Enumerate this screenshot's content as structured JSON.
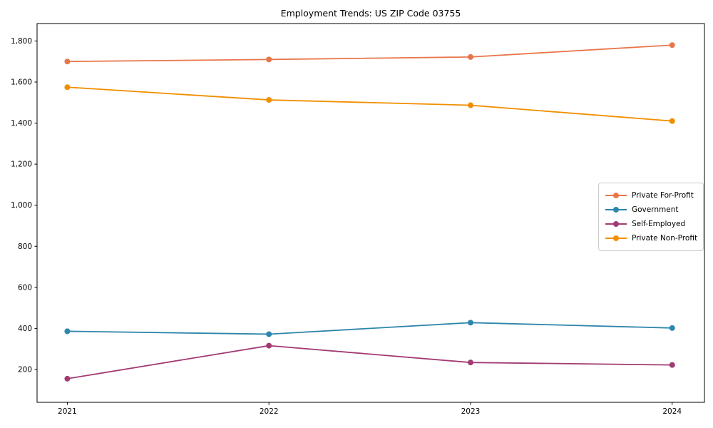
{
  "chart_data": {
    "type": "line",
    "title": "Employment Trends: US ZIP Code 03755",
    "x": [
      2021,
      2022,
      2023,
      2024
    ],
    "x_tick_labels": [
      "2021",
      "2022",
      "2023",
      "2024"
    ],
    "series": [
      {
        "name": "Private For-Profit",
        "color": "#E8764B",
        "values": [
          1700,
          1710,
          1722,
          1780
        ]
      },
      {
        "name": "Government",
        "color": "#2E86AB",
        "values": [
          386,
          372,
          428,
          402
        ]
      },
      {
        "name": "Self-Employed",
        "color": "#A23B72",
        "values": [
          155,
          316,
          234,
          222
        ]
      },
      {
        "name": "Private Non-Profit",
        "color": "#F18F01",
        "values": [
          1575,
          1513,
          1487,
          1410
        ]
      }
    ],
    "xlabel": "",
    "ylabel": "",
    "xlim": [
      2020.85,
      2024.16
    ],
    "ylim": [
      40,
      1885
    ],
    "yticks": [
      200,
      400,
      600,
      800,
      1000,
      1200,
      1400,
      1600,
      1800
    ],
    "grid": false,
    "legend_position": "center-right",
    "axis_color": "#000000",
    "background_color": "#ffffff"
  }
}
